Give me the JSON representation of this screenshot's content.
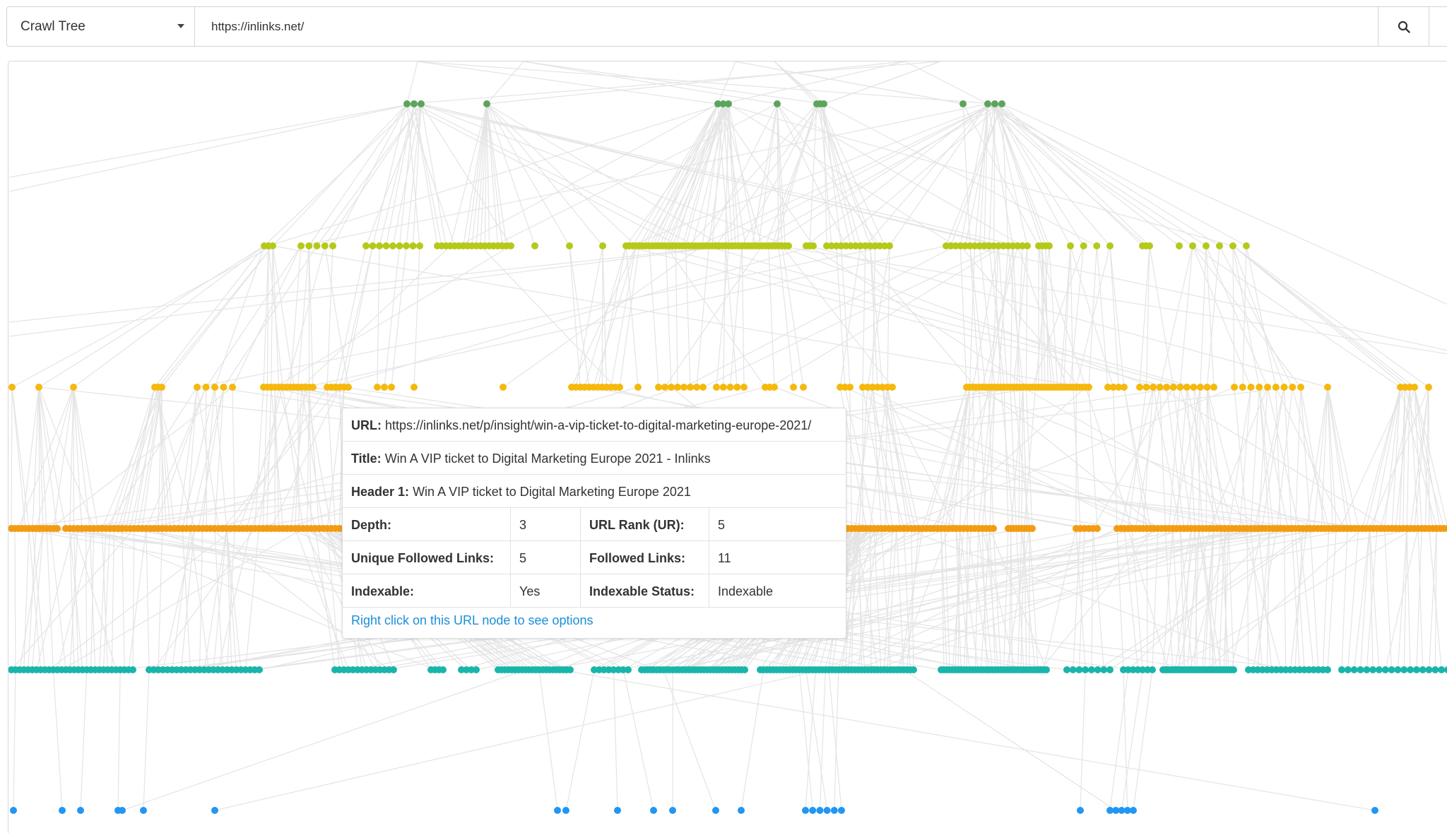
{
  "toolbar": {
    "view_select": "Crawl Tree",
    "url_value": "https://inlinks.net/",
    "url_placeholder": ""
  },
  "tree": {
    "icon_search": "search-icon",
    "level_colors": [
      "#5aa55a",
      "#b5c919",
      "#f5b80c",
      "#f39c12",
      "#1ab5aa",
      "#2196f3"
    ],
    "edge_color": "#e4e4e4"
  },
  "tooltip": {
    "url_label": "URL:",
    "url_value": "https://inlinks.net/p/insight/win-a-vip-ticket-to-digital-marketing-europe-2021/",
    "title_label": "Title:",
    "title_value": "Win A VIP ticket to Digital Marketing Europe 2021 - Inlinks",
    "header_label": "Header 1:",
    "header_value": "Win A VIP ticket to Digital Marketing Europe 2021",
    "rows": [
      {
        "k1": "Depth:",
        "v1": "3",
        "k2": "URL Rank (UR):",
        "v2": "5"
      },
      {
        "k1": "Unique Followed Links:",
        "v1": "5",
        "k2": "Followed Links:",
        "v2": "11"
      },
      {
        "k1": "Indexable:",
        "v1": "Yes",
        "k2": "Indexable Status:",
        "v2": "Indexable"
      }
    ],
    "hint": "Right click on this URL node to see options"
  }
}
